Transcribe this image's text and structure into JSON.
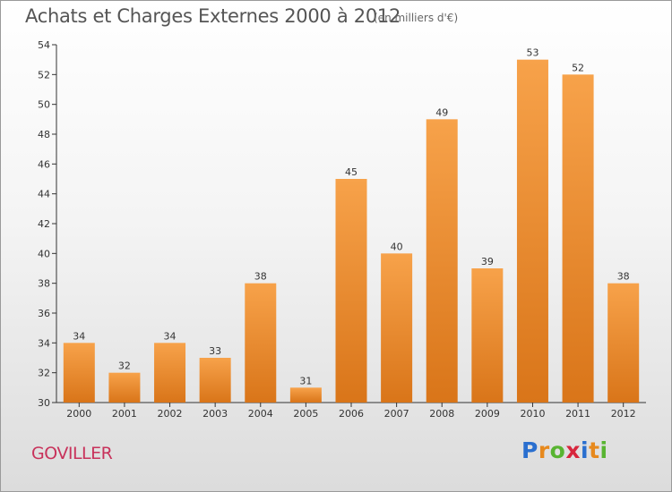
{
  "header": {
    "title": "Achats et Charges Externes 2000 à 2012",
    "subtitle": "(en milliers d'€)"
  },
  "footer": {
    "commune": "GOVILLER",
    "logo_letters": [
      {
        "char": "P",
        "color": "#2a6fcf"
      },
      {
        "char": "r",
        "color": "#e7891d"
      },
      {
        "char": "o",
        "color": "#58b431"
      },
      {
        "char": "x",
        "color": "#d7263d"
      },
      {
        "char": "i",
        "color": "#2a6fcf"
      },
      {
        "char": "t",
        "color": "#e7891d"
      },
      {
        "char": "i",
        "color": "#58b431"
      }
    ]
  },
  "colors": {
    "bar_light": "#f7a24a",
    "bar_dark": "#d97519",
    "axis": "#333333"
  },
  "chart_data": {
    "type": "bar",
    "categories": [
      "2000",
      "2001",
      "2002",
      "2003",
      "2004",
      "2005",
      "2006",
      "2007",
      "2008",
      "2009",
      "2010",
      "2011",
      "2012"
    ],
    "values": [
      34,
      32,
      34,
      33,
      38,
      31,
      45,
      40,
      49,
      39,
      53,
      52,
      38
    ],
    "data_labels": [
      "34",
      "32",
      "34",
      "33",
      "38",
      "31",
      "45",
      "40",
      "49",
      "39",
      "53",
      "52",
      "38"
    ],
    "ylim": [
      30,
      54
    ],
    "yticks": [
      30,
      32,
      34,
      36,
      38,
      40,
      42,
      44,
      46,
      48,
      50,
      52,
      54
    ],
    "grid": false,
    "legend": "none",
    "title": "Achats et Charges Externes 2000 à 2012",
    "xlabel": "",
    "ylabel": ""
  }
}
